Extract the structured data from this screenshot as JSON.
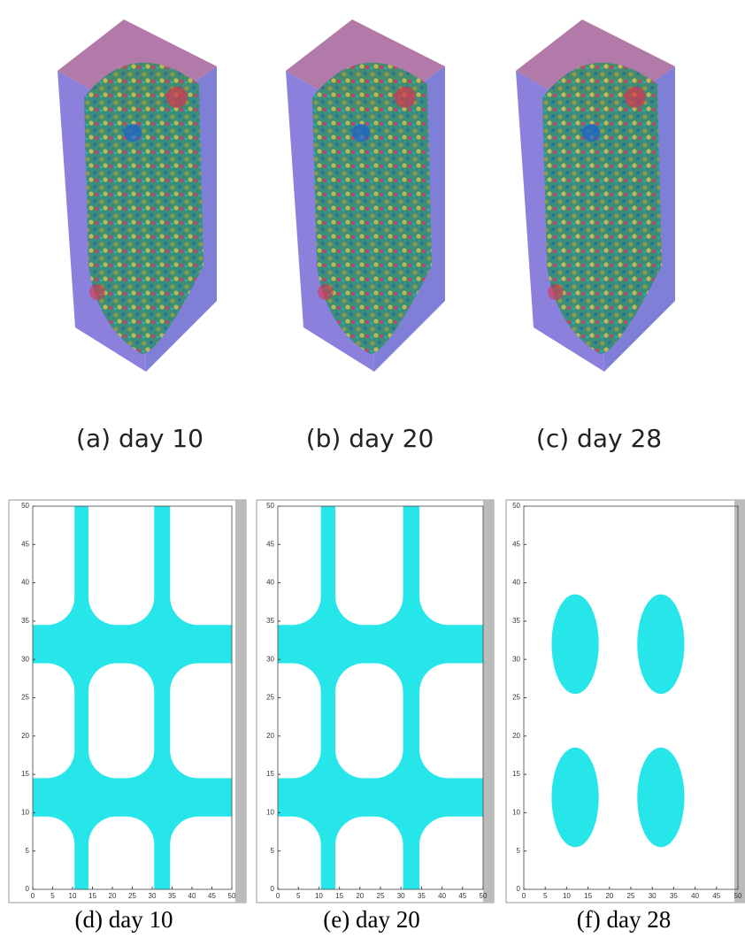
{
  "renders": [
    {
      "caption": "(a) day 10"
    },
    {
      "caption": "(b) day 20"
    },
    {
      "caption": "(c) day 28"
    }
  ],
  "plots": [
    {
      "caption": "(d) day 10",
      "xlim": [
        0,
        50
      ],
      "ylim": [
        0,
        50
      ],
      "xticks": [
        0,
        5,
        10,
        15,
        20,
        25,
        30,
        35,
        40,
        45,
        50
      ],
      "yticks": [
        0,
        5,
        10,
        15,
        20,
        25,
        30,
        35,
        40,
        45,
        50
      ]
    },
    {
      "caption": "(e) day 20",
      "xlim": [
        0,
        50
      ],
      "ylim": [
        0,
        50
      ],
      "xticks": [
        0,
        5,
        10,
        15,
        20,
        25,
        30,
        35,
        40,
        45,
        50
      ],
      "yticks": [
        0,
        5,
        10,
        15,
        20,
        25,
        30,
        35,
        40,
        45,
        50
      ]
    },
    {
      "caption": "(f) day 28",
      "xlim": [
        0,
        50
      ],
      "ylim": [
        0,
        50
      ],
      "xticks": [
        0,
        5,
        10,
        15,
        20,
        25,
        30,
        35,
        40,
        45,
        50
      ],
      "yticks": [
        0,
        5,
        10,
        15,
        20,
        25,
        30,
        35,
        40,
        45,
        50
      ]
    }
  ]
}
